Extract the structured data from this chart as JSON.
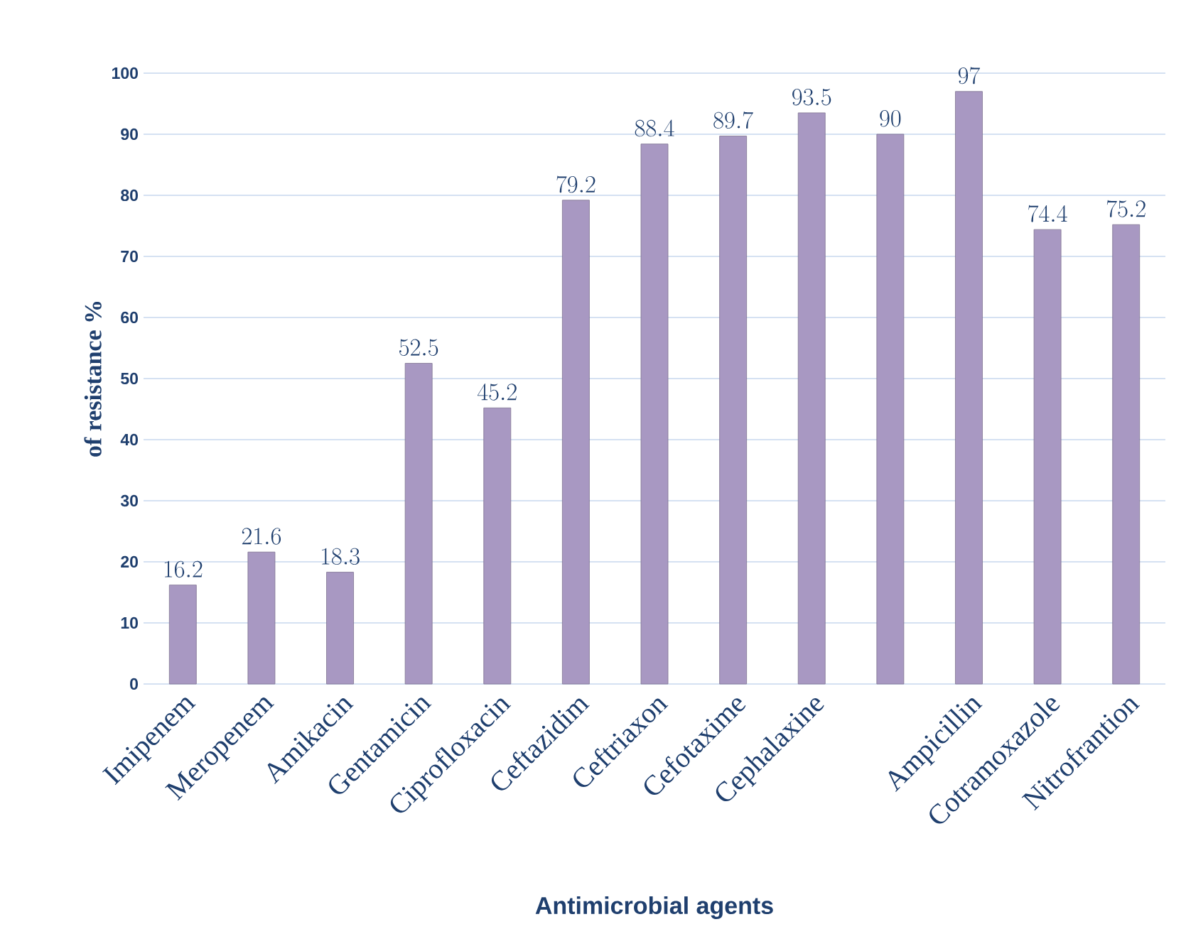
{
  "chart_data": {
    "type": "bar",
    "xlabel": "Antimicrobial agents",
    "ylabel": "of resistance %",
    "categories": [
      "Imipenem",
      "Meropenem",
      "Amikacin",
      "Gentamicin",
      "Ciprofloxacin",
      "Ceftazidim",
      "Ceftriaxon",
      "Cefotaxime",
      "Cephalaxine",
      null,
      "Ampicillin",
      "Cotramoxazole",
      "Nitrofrantion"
    ],
    "values": [
      16.2,
      21.6,
      18.3,
      52.5,
      45.2,
      79.2,
      88.4,
      89.7,
      93.5,
      90,
      97,
      74.4,
      75.2
    ],
    "color": "#a898c2",
    "ylim": [
      0,
      100
    ],
    "yticks": [
      0,
      10,
      20,
      30,
      40,
      50,
      60,
      70,
      80,
      90,
      100
    ],
    "grid": "y",
    "data_labels": true
  }
}
